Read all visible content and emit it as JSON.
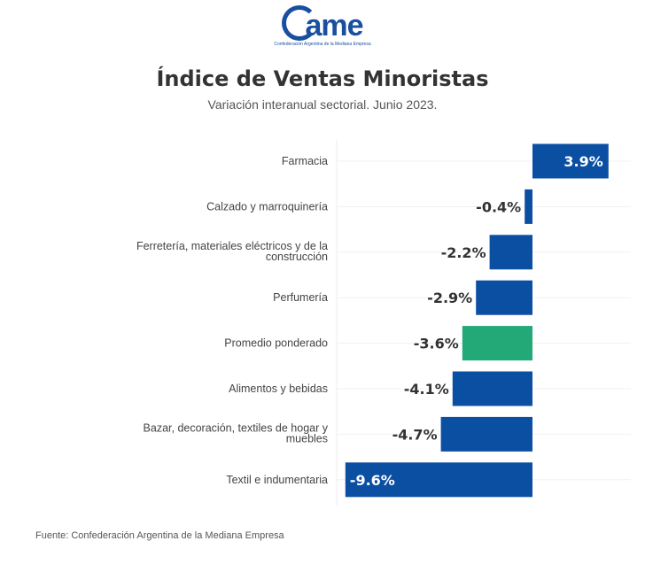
{
  "logo": {
    "text": "came",
    "tagline": "Confederación Argentina de la Mediana Empresa"
  },
  "chart_data": {
    "type": "bar",
    "orientation": "horizontal",
    "title": "Índice de Ventas Minoristas",
    "subtitle": "Variación interanual sectorial. Junio 2023.",
    "categories": [
      "Farmacia",
      "Calzado y marroquinería",
      "Ferretería, materiales eléctricos y de la construcción",
      "Perfumería",
      "Promedio ponderado",
      "Alimentos y bebidas",
      "Bazar, decoración, textiles de hogar y muebles",
      "Textil e indumentaria"
    ],
    "values": [
      3.9,
      -0.4,
      -2.2,
      -2.9,
      -3.6,
      -4.1,
      -4.7,
      -9.6
    ],
    "labels": [
      "3.9%",
      "-0.4%",
      "-2.2%",
      "-2.9%",
      "-3.6%",
      "-4.1%",
      "-4.7%",
      "-9.6%"
    ],
    "colors": [
      "#0b4fa3",
      "#0b4fa3",
      "#0b4fa3",
      "#0b4fa3",
      "#23a877",
      "#0b4fa3",
      "#0b4fa3",
      "#0b4fa3"
    ],
    "xlim": [
      -10,
      5
    ],
    "grid": true,
    "legend": "none"
  },
  "source": "Fuente: Confederación Argentina de la Mediana Empresa"
}
